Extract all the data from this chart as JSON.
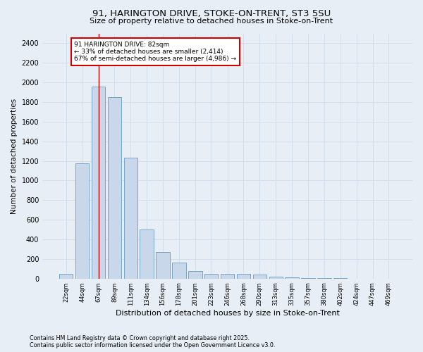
{
  "title1": "91, HARINGTON DRIVE, STOKE-ON-TRENT, ST3 5SU",
  "title2": "Size of property relative to detached houses in Stoke-on-Trent",
  "xlabel": "Distribution of detached houses by size in Stoke-on-Trent",
  "ylabel": "Number of detached properties",
  "categories": [
    "22sqm",
    "44sqm",
    "67sqm",
    "89sqm",
    "111sqm",
    "134sqm",
    "156sqm",
    "178sqm",
    "201sqm",
    "223sqm",
    "246sqm",
    "268sqm",
    "290sqm",
    "313sqm",
    "335sqm",
    "357sqm",
    "380sqm",
    "402sqm",
    "424sqm",
    "447sqm",
    "469sqm"
  ],
  "values": [
    50,
    1175,
    1960,
    1850,
    1230,
    500,
    270,
    160,
    75,
    50,
    50,
    50,
    40,
    20,
    10,
    5,
    3,
    2,
    1,
    1,
    1
  ],
  "bar_color": "#c8d8ea",
  "bar_edge_color": "#6a9cc0",
  "grid_color": "#d0dcea",
  "background_color": "#e8eef6",
  "annotation_text": "91 HARINGTON DRIVE: 82sqm\n← 33% of detached houses are smaller (2,414)\n67% of semi-detached houses are larger (4,986) →",
  "annotation_box_color": "#ffffff",
  "annotation_box_edge_color": "#cc0000",
  "vline_color": "#cc0000",
  "footer1": "Contains HM Land Registry data © Crown copyright and database right 2025.",
  "footer2": "Contains public sector information licensed under the Open Government Licence v3.0.",
  "ylim": [
    0,
    2500
  ],
  "yticks": [
    0,
    200,
    400,
    600,
    800,
    1000,
    1200,
    1400,
    1600,
    1800,
    2000,
    2200,
    2400
  ],
  "vline_pos": 2.0
}
